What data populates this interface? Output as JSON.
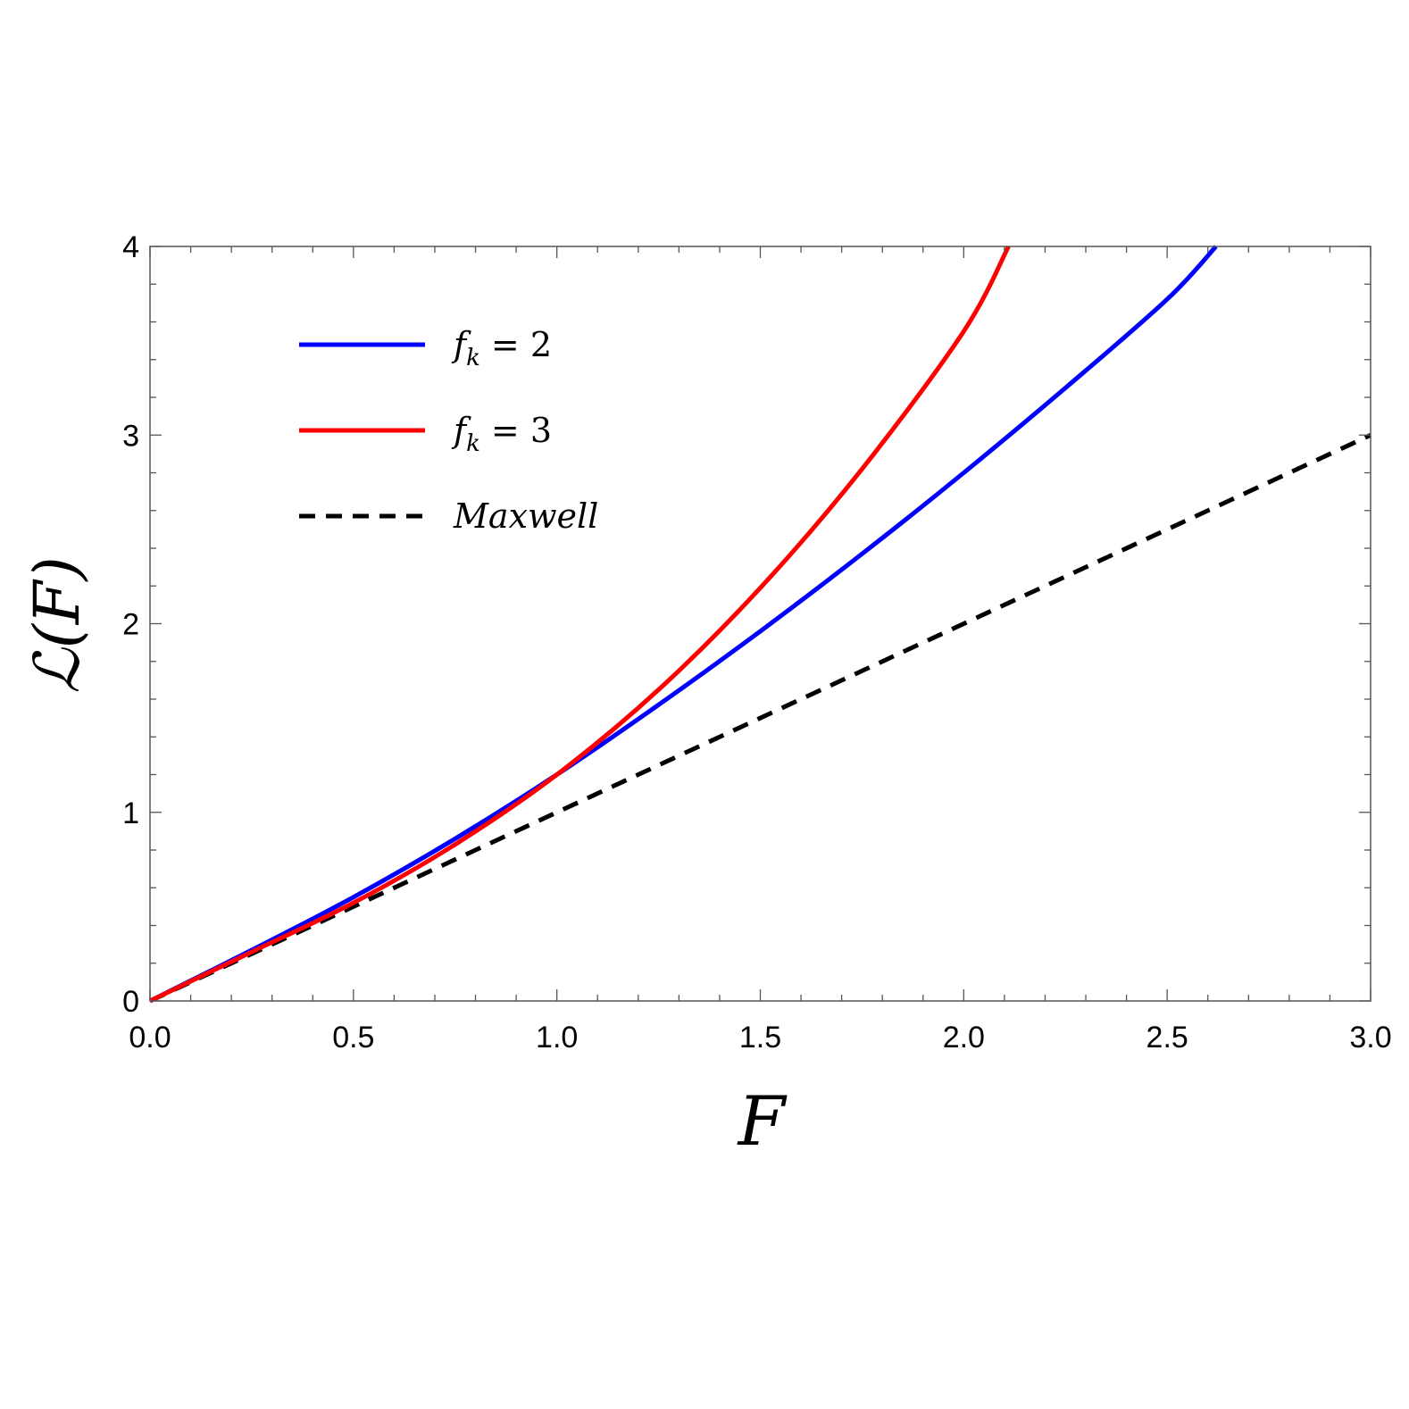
{
  "chart_data": {
    "type": "line",
    "xlabel": "F",
    "ylabel": "ℒ(F)",
    "xlim": [
      0,
      3
    ],
    "ylim": [
      0,
      4
    ],
    "x_ticks": [
      "0.0",
      "0.5",
      "1.0",
      "1.5",
      "2.0",
      "2.5",
      "3.0"
    ],
    "y_ticks": [
      "0",
      "1",
      "2",
      "3",
      "4"
    ],
    "grid": false,
    "legend_position": "top-left",
    "series": [
      {
        "name": "f_k = 2",
        "legend": {
          "base": "f",
          "sub": "k",
          "rest": " = 2"
        },
        "color": "#0000ff",
        "dash": "solid",
        "x": [
          0,
          0.25,
          0.5,
          0.75,
          1.0,
          1.25,
          1.5,
          1.75,
          2.0,
          2.25,
          2.5,
          2.62
        ],
        "y": [
          0,
          0.27,
          0.55,
          0.86,
          1.2,
          1.57,
          1.96,
          2.37,
          2.8,
          3.25,
          3.72,
          4.0
        ]
      },
      {
        "name": "f_k = 3",
        "legend": {
          "base": "f",
          "sub": "k",
          "rest": " = 3"
        },
        "color": "#ff0000",
        "dash": "solid",
        "x": [
          0,
          0.25,
          0.5,
          0.75,
          1.0,
          1.25,
          1.5,
          1.75,
          2.0,
          2.11
        ],
        "y": [
          0,
          0.26,
          0.52,
          0.83,
          1.2,
          1.65,
          2.19,
          2.82,
          3.55,
          4.0
        ]
      },
      {
        "name": "Maxwell",
        "legend": {
          "base": "Maxwell",
          "sub": "",
          "rest": ""
        },
        "color": "#000000",
        "dash": "dashed",
        "x": [
          0,
          3
        ],
        "y": [
          0,
          3
        ]
      }
    ]
  }
}
